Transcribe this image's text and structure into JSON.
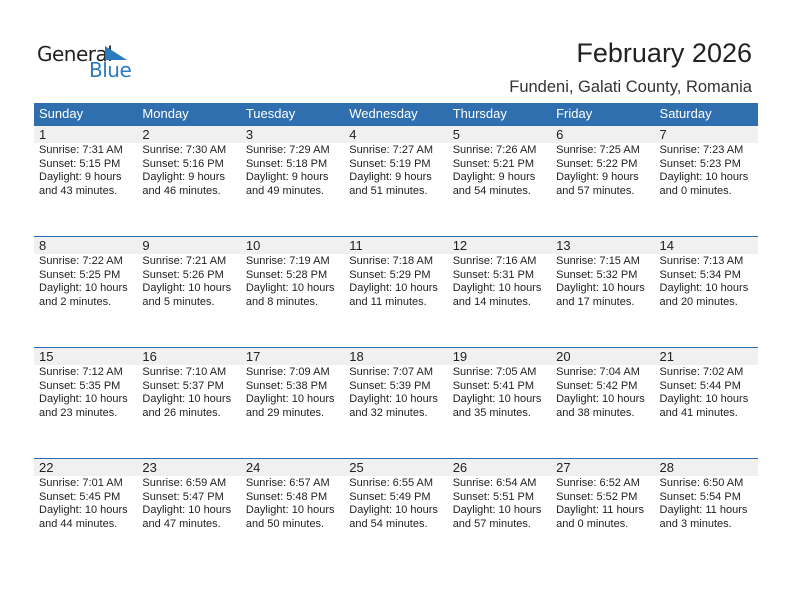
{
  "logo": {
    "line1": "General",
    "line2": "Blue",
    "color": "#2a7abf"
  },
  "header": {
    "title": "February 2026",
    "location": "Fundeni, Galati County, Romania"
  },
  "colors": {
    "header_bg": "#2f6fb0",
    "date_bg": "#f0f0f0"
  },
  "weekdays": [
    "Sunday",
    "Monday",
    "Tuesday",
    "Wednesday",
    "Thursday",
    "Friday",
    "Saturday"
  ],
  "days": [
    {
      "day": "1",
      "sunrise": "Sunrise: 7:31 AM",
      "sunset": "Sunset: 5:15 PM",
      "daylight": "Daylight: 9 hours",
      "minutes": "and 43 minutes."
    },
    {
      "day": "2",
      "sunrise": "Sunrise: 7:30 AM",
      "sunset": "Sunset: 5:16 PM",
      "daylight": "Daylight: 9 hours",
      "minutes": "and 46 minutes."
    },
    {
      "day": "3",
      "sunrise": "Sunrise: 7:29 AM",
      "sunset": "Sunset: 5:18 PM",
      "daylight": "Daylight: 9 hours",
      "minutes": "and 49 minutes."
    },
    {
      "day": "4",
      "sunrise": "Sunrise: 7:27 AM",
      "sunset": "Sunset: 5:19 PM",
      "daylight": "Daylight: 9 hours",
      "minutes": "and 51 minutes."
    },
    {
      "day": "5",
      "sunrise": "Sunrise: 7:26 AM",
      "sunset": "Sunset: 5:21 PM",
      "daylight": "Daylight: 9 hours",
      "minutes": "and 54 minutes."
    },
    {
      "day": "6",
      "sunrise": "Sunrise: 7:25 AM",
      "sunset": "Sunset: 5:22 PM",
      "daylight": "Daylight: 9 hours",
      "minutes": "and 57 minutes."
    },
    {
      "day": "7",
      "sunrise": "Sunrise: 7:23 AM",
      "sunset": "Sunset: 5:23 PM",
      "daylight": "Daylight: 10 hours",
      "minutes": "and 0 minutes."
    },
    {
      "day": "8",
      "sunrise": "Sunrise: 7:22 AM",
      "sunset": "Sunset: 5:25 PM",
      "daylight": "Daylight: 10 hours",
      "minutes": "and 2 minutes."
    },
    {
      "day": "9",
      "sunrise": "Sunrise: 7:21 AM",
      "sunset": "Sunset: 5:26 PM",
      "daylight": "Daylight: 10 hours",
      "minutes": "and 5 minutes."
    },
    {
      "day": "10",
      "sunrise": "Sunrise: 7:19 AM",
      "sunset": "Sunset: 5:28 PM",
      "daylight": "Daylight: 10 hours",
      "minutes": "and 8 minutes."
    },
    {
      "day": "11",
      "sunrise": "Sunrise: 7:18 AM",
      "sunset": "Sunset: 5:29 PM",
      "daylight": "Daylight: 10 hours",
      "minutes": "and 11 minutes."
    },
    {
      "day": "12",
      "sunrise": "Sunrise: 7:16 AM",
      "sunset": "Sunset: 5:31 PM",
      "daylight": "Daylight: 10 hours",
      "minutes": "and 14 minutes."
    },
    {
      "day": "13",
      "sunrise": "Sunrise: 7:15 AM",
      "sunset": "Sunset: 5:32 PM",
      "daylight": "Daylight: 10 hours",
      "minutes": "and 17 minutes."
    },
    {
      "day": "14",
      "sunrise": "Sunrise: 7:13 AM",
      "sunset": "Sunset: 5:34 PM",
      "daylight": "Daylight: 10 hours",
      "minutes": "and 20 minutes."
    },
    {
      "day": "15",
      "sunrise": "Sunrise: 7:12 AM",
      "sunset": "Sunset: 5:35 PM",
      "daylight": "Daylight: 10 hours",
      "minutes": "and 23 minutes."
    },
    {
      "day": "16",
      "sunrise": "Sunrise: 7:10 AM",
      "sunset": "Sunset: 5:37 PM",
      "daylight": "Daylight: 10 hours",
      "minutes": "and 26 minutes."
    },
    {
      "day": "17",
      "sunrise": "Sunrise: 7:09 AM",
      "sunset": "Sunset: 5:38 PM",
      "daylight": "Daylight: 10 hours",
      "minutes": "and 29 minutes."
    },
    {
      "day": "18",
      "sunrise": "Sunrise: 7:07 AM",
      "sunset": "Sunset: 5:39 PM",
      "daylight": "Daylight: 10 hours",
      "minutes": "and 32 minutes."
    },
    {
      "day": "19",
      "sunrise": "Sunrise: 7:05 AM",
      "sunset": "Sunset: 5:41 PM",
      "daylight": "Daylight: 10 hours",
      "minutes": "and 35 minutes."
    },
    {
      "day": "20",
      "sunrise": "Sunrise: 7:04 AM",
      "sunset": "Sunset: 5:42 PM",
      "daylight": "Daylight: 10 hours",
      "minutes": "and 38 minutes."
    },
    {
      "day": "21",
      "sunrise": "Sunrise: 7:02 AM",
      "sunset": "Sunset: 5:44 PM",
      "daylight": "Daylight: 10 hours",
      "minutes": "and 41 minutes."
    },
    {
      "day": "22",
      "sunrise": "Sunrise: 7:01 AM",
      "sunset": "Sunset: 5:45 PM",
      "daylight": "Daylight: 10 hours",
      "minutes": "and 44 minutes."
    },
    {
      "day": "23",
      "sunrise": "Sunrise: 6:59 AM",
      "sunset": "Sunset: 5:47 PM",
      "daylight": "Daylight: 10 hours",
      "minutes": "and 47 minutes."
    },
    {
      "day": "24",
      "sunrise": "Sunrise: 6:57 AM",
      "sunset": "Sunset: 5:48 PM",
      "daylight": "Daylight: 10 hours",
      "minutes": "and 50 minutes."
    },
    {
      "day": "25",
      "sunrise": "Sunrise: 6:55 AM",
      "sunset": "Sunset: 5:49 PM",
      "daylight": "Daylight: 10 hours",
      "minutes": "and 54 minutes."
    },
    {
      "day": "26",
      "sunrise": "Sunrise: 6:54 AM",
      "sunset": "Sunset: 5:51 PM",
      "daylight": "Daylight: 10 hours",
      "minutes": "and 57 minutes."
    },
    {
      "day": "27",
      "sunrise": "Sunrise: 6:52 AM",
      "sunset": "Sunset: 5:52 PM",
      "daylight": "Daylight: 11 hours",
      "minutes": "and 0 minutes."
    },
    {
      "day": "28",
      "sunrise": "Sunrise: 6:50 AM",
      "sunset": "Sunset: 5:54 PM",
      "daylight": "Daylight: 11 hours",
      "minutes": "and 3 minutes."
    }
  ]
}
